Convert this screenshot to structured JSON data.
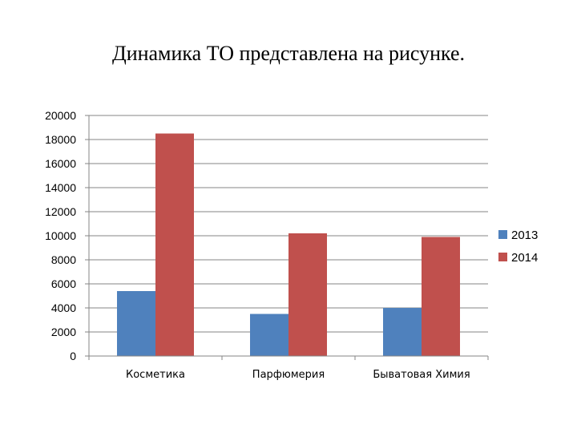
{
  "slide": {
    "title": "Динамика ТО представлена на рисунке."
  },
  "chart_data": {
    "type": "bar",
    "categories": [
      "Косметика",
      "Парфюмерия",
      "Быватовая Химия"
    ],
    "series": [
      {
        "name": "2013",
        "values": [
          5400,
          3500,
          4000
        ],
        "color": "#4F81BD"
      },
      {
        "name": "2014",
        "values": [
          18500,
          10200,
          9900
        ],
        "color": "#C0504D"
      }
    ],
    "ylim": [
      0,
      20000
    ],
    "yticks": [
      0,
      2000,
      4000,
      6000,
      8000,
      10000,
      12000,
      14000,
      16000,
      18000,
      20000
    ],
    "grid": true,
    "legend": "right"
  }
}
